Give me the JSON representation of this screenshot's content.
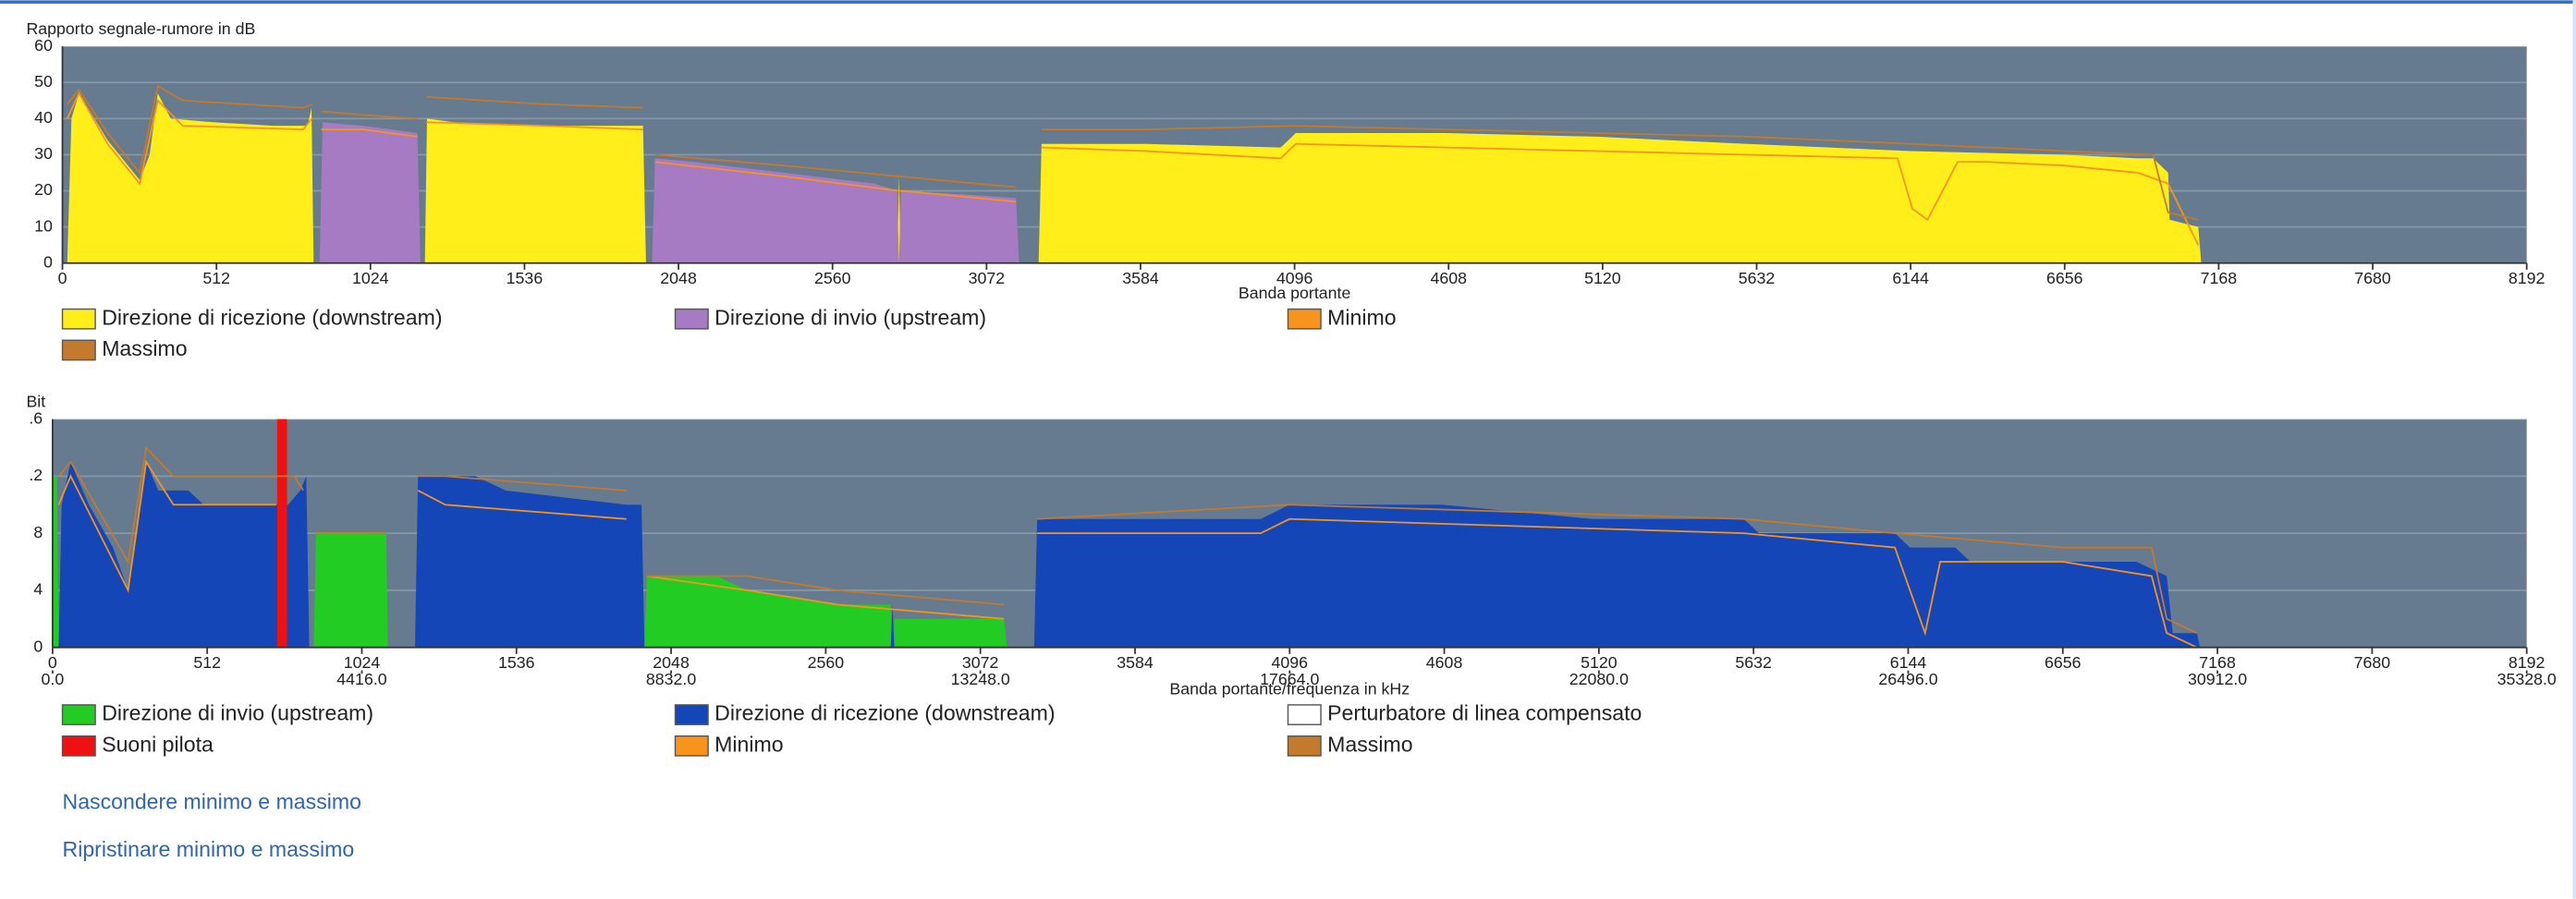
{
  "chart_data": [
    {
      "type": "area",
      "title": "Rapporto segnale-rumore in dB",
      "xlabel": "Banda portante",
      "xlim": [
        0,
        8192
      ],
      "xticks": [
        0,
        512,
        1024,
        1536,
        2048,
        2560,
        3072,
        3584,
        4096,
        4608,
        5120,
        5632,
        6144,
        6656,
        7168,
        7680,
        8192
      ],
      "ylim": [
        0,
        60
      ],
      "yticks": [
        0,
        10,
        20,
        30,
        40,
        50,
        60
      ],
      "grid": true,
      "series": [
        {
          "name": "Direzione di ricezione (downstream)",
          "type": "area",
          "color": "#ffee1a",
          "x": [
            16,
            30,
            55,
            150,
            257,
            290,
            317,
            360,
            500,
            700,
            815,
            828,
            835,
            1000,
            1205,
            1212,
            1300,
            1600,
            1930,
            1940,
            2500,
            2775,
            2781,
            2787,
            3000,
            3245,
            3255,
            3600,
            4050,
            4100,
            4600,
            5100,
            5600,
            6144,
            6656,
            6900,
            6950,
            7000,
            7005,
            7100,
            7110
          ],
          "values": [
            0,
            40,
            47,
            34,
            23,
            30,
            47,
            40,
            39,
            38,
            38,
            43,
            0,
            null,
            0,
            40,
            39,
            38,
            38,
            0,
            null,
            0,
            24,
            0,
            null,
            0,
            33,
            33,
            32,
            36,
            36,
            35,
            33,
            31,
            30,
            29,
            29,
            25,
            12,
            10,
            0
          ]
        },
        {
          "name": "Direzione di invio (upstream)",
          "type": "area",
          "color": "#a77bc4",
          "x": [
            855,
            865,
            1000,
            1180,
            1190,
            1500,
            1960,
            1970,
            2100,
            2400,
            2700,
            2775,
            2781,
            2787,
            3000,
            3170,
            3180
          ],
          "values": [
            0,
            39,
            38,
            36,
            0,
            null,
            0,
            29,
            28,
            25,
            22,
            20,
            0,
            20,
            19,
            18,
            0
          ]
        },
        {
          "name": "Minimo",
          "type": "line",
          "color": "#f7941d",
          "x": [
            16,
            55,
            150,
            257,
            317,
            400,
            800,
            830,
            840,
            860,
            1000,
            1180,
            1190,
            1210,
            1600,
            1930,
            1940,
            1970,
            2400,
            2781,
            2790,
            3170,
            3180,
            3255,
            3600,
            4050,
            4100,
            4600,
            5100,
            5600,
            6100,
            6150,
            6200,
            6250,
            6300,
            6400,
            6656,
            6900,
            7000,
            7100
          ],
          "values": [
            40,
            47,
            33,
            22,
            45,
            38,
            37,
            40,
            null,
            37,
            37,
            35,
            null,
            39,
            38,
            37,
            null,
            28,
            24,
            20,
            20,
            17,
            null,
            32,
            31,
            29,
            33,
            32,
            31,
            30,
            29,
            15,
            12,
            20,
            28,
            28,
            27,
            25,
            22,
            5
          ]
        },
        {
          "name": "Massimo",
          "type": "line",
          "color": "#c47a2c",
          "x": [
            16,
            55,
            150,
            257,
            317,
            400,
            800,
            830,
            845,
            860,
            1000,
            1180,
            1195,
            1210,
            1600,
            1930,
            1950,
            1970,
            2400,
            2781,
            3170,
            3200,
            3255,
            3600,
            4100,
            4600,
            5100,
            5600,
            6144,
            6656,
            6950,
            7000,
            7100
          ],
          "values": [
            44,
            48,
            36,
            25,
            49,
            45,
            43,
            44,
            null,
            42,
            41,
            40,
            null,
            46,
            44,
            43,
            null,
            30,
            27,
            24,
            21,
            null,
            37,
            37,
            38,
            37,
            36,
            35,
            33,
            31,
            30,
            14,
            12
          ]
        }
      ]
    },
    {
      "type": "area",
      "title": "Bit",
      "xlabel": "Banda portante/frequenza in kHz",
      "xlim": [
        0,
        8192
      ],
      "xticks": [
        0,
        512,
        1024,
        1536,
        2048,
        2560,
        3072,
        3584,
        4096,
        4608,
        5120,
        5632,
        6144,
        6656,
        7168,
        7680,
        8192
      ],
      "x2lim": [
        0,
        35328
      ],
      "x2ticks": [
        {
          "value": 0,
          "label": "0.0"
        },
        {
          "value": 4416,
          "label": "4416.0"
        },
        {
          "value": 8832,
          "label": "8832.0"
        },
        {
          "value": 13248,
          "label": "13248.0"
        },
        {
          "value": 17664,
          "label": "17664.0"
        },
        {
          "value": 22080,
          "label": "22080.0"
        },
        {
          "value": 26496,
          "label": "26496.0"
        },
        {
          "value": 30912,
          "label": "30912.0"
        },
        {
          "value": 35328,
          "label": "35328.0"
        }
      ],
      "ylim": [
        0,
        16
      ],
      "yticks": [
        0,
        4,
        8,
        {
          "value": 12,
          "label": ".2"
        },
        {
          "value": 16,
          "label": ".6"
        }
      ],
      "grid": true,
      "series": [
        {
          "name": "Direzione di invio (upstream)",
          "type": "area",
          "color": "#22cc22",
          "x": [
            0,
            3,
            15,
            20,
            25,
            865,
            872,
            1000,
            1105,
            1110,
            1500,
            1960,
            1968,
            2200,
            2300,
            2600,
            2775,
            2781,
            2787,
            3150,
            3160
          ],
          "values": [
            0,
            12,
            12,
            0,
            null,
            0,
            8,
            8,
            8,
            0,
            null,
            0,
            5,
            5,
            4,
            3,
            3,
            0,
            2,
            2,
            0
          ]
        },
        {
          "name": "Direzione di ricezione (downstream)",
          "type": "area",
          "color": "#1446b8",
          "x": [
            20,
            30,
            60,
            120,
            200,
            250,
            280,
            310,
            350,
            450,
            500,
            600,
            740,
            780,
            820,
            840,
            850,
            1000,
            1200,
            1210,
            1400,
            1500,
            1900,
            1950,
            1960,
            2500,
            2775,
            2781,
            2787,
            3000,
            3250,
            3260,
            3600,
            4000,
            4096,
            4600,
            5100,
            5600,
            5650,
            6100,
            6150,
            6300,
            6350,
            6900,
            7000,
            7020,
            7100,
            7110
          ],
          "values": [
            0,
            10,
            13,
            10,
            7,
            4,
            8,
            13,
            11,
            11,
            10,
            10,
            10,
            10,
            11,
            12,
            0,
            null,
            0,
            12,
            12,
            11,
            10,
            10,
            0,
            null,
            0,
            3,
            0,
            null,
            0,
            9,
            9,
            9,
            10,
            10,
            9,
            9,
            8,
            8,
            7,
            7,
            6,
            6,
            5,
            1,
            1,
            0
          ]
        },
        {
          "name": "Perturbatore di linea compensato",
          "type": "area",
          "color": "#ffffff",
          "x": [],
          "values": []
        },
        {
          "name": "Suoni pilota",
          "type": "bar",
          "color": "#ee1111",
          "x": [
            760
          ],
          "values": [
            16
          ]
        },
        {
          "name": "Minimo",
          "type": "line",
          "color": "#f7941d",
          "x": [
            20,
            60,
            250,
            310,
            400,
            740,
            800,
            870,
            1105,
            1150,
            1210,
            1300,
            1900,
            1930,
            1968,
            2300,
            2600,
            3150,
            3200,
            3260,
            4000,
            4096,
            5600,
            6100,
            6150,
            6200,
            6250,
            6656,
            6950,
            7000,
            7100
          ],
          "values": [
            10,
            12,
            4,
            13,
            10,
            10,
            null,
            8,
            8,
            null,
            11,
            10,
            9,
            null,
            5,
            4,
            3,
            2,
            null,
            8,
            8,
            9,
            8,
            7,
            4,
            1,
            6,
            6,
            5,
            1,
            0
          ]
        },
        {
          "name": "Massimo",
          "type": "line",
          "color": "#c47a2c",
          "x": [
            20,
            60,
            250,
            310,
            400,
            740,
            800,
            830,
            860,
            870,
            1105,
            1150,
            1210,
            1300,
            1900,
            1930,
            1968,
            2300,
            2600,
            3150,
            3200,
            3260,
            4096,
            5600,
            6100,
            6656,
            6950,
            7000,
            7100
          ],
          "values": [
            12,
            13,
            6,
            14,
            12,
            12,
            12,
            11,
            null,
            8,
            8,
            null,
            12,
            12,
            11,
            null,
            5,
            5,
            4,
            3,
            null,
            9,
            10,
            9,
            8,
            7,
            7,
            2,
            1
          ]
        }
      ]
    }
  ],
  "links": [
    "Nascondere minimo e massimo",
    "Ripristinare minimo e massimo"
  ]
}
